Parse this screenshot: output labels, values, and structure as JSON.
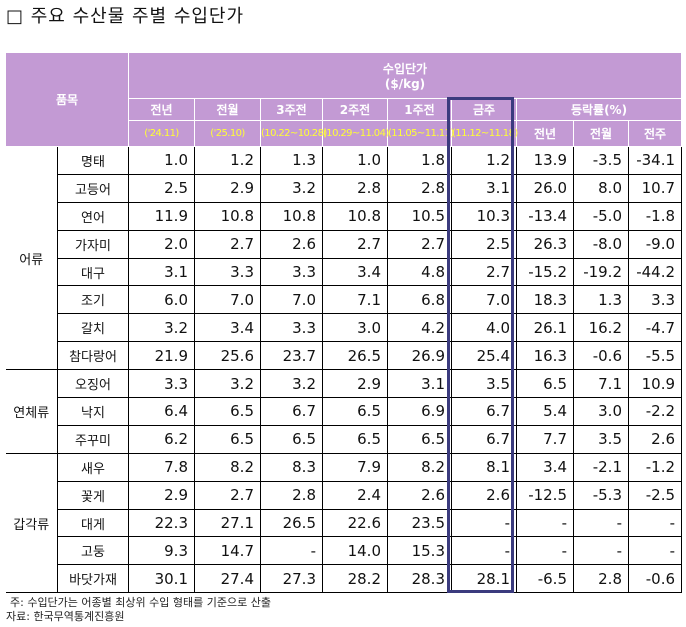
{
  "title": "□ 주요 수산물 주별 수입단가",
  "header": {
    "item": "품목",
    "price_title": "수입단가",
    "price_unit": "($/kg)",
    "periods": [
      {
        "label": "전년",
        "range": "('24.11)"
      },
      {
        "label": "전월",
        "range": "('25.10)"
      },
      {
        "label": "3주전",
        "range": "(10.22~10.28)"
      },
      {
        "label": "2주전",
        "range": "(10.29~11.04)"
      },
      {
        "label": "1주전",
        "range": "(11.05~11.11)"
      },
      {
        "label": "금주",
        "range": "(11.12~11.18)"
      }
    ],
    "change_title": "등락률(%)",
    "change_cols": [
      "전년",
      "전월",
      "전주"
    ]
  },
  "groups": [
    {
      "name": "어류",
      "rows": [
        {
          "item": "명태",
          "v": [
            "1.0",
            "1.2",
            "1.3",
            "1.0",
            "1.8",
            "1.2",
            "13.9",
            "-3.5",
            "-34.1"
          ]
        },
        {
          "item": "고등어",
          "v": [
            "2.5",
            "2.9",
            "3.2",
            "2.8",
            "2.8",
            "3.1",
            "26.0",
            "8.0",
            "10.7"
          ]
        },
        {
          "item": "연어",
          "v": [
            "11.9",
            "10.8",
            "10.8",
            "10.8",
            "10.5",
            "10.3",
            "-13.4",
            "-5.0",
            "-1.8"
          ]
        },
        {
          "item": "가자미",
          "v": [
            "2.0",
            "2.7",
            "2.6",
            "2.7",
            "2.7",
            "2.5",
            "26.3",
            "-8.0",
            "-9.0"
          ]
        },
        {
          "item": "대구",
          "v": [
            "3.1",
            "3.3",
            "3.3",
            "3.4",
            "4.8",
            "2.7",
            "-15.2",
            "-19.2",
            "-44.2"
          ]
        },
        {
          "item": "조기",
          "v": [
            "6.0",
            "7.0",
            "7.0",
            "7.1",
            "6.8",
            "7.0",
            "18.3",
            "1.3",
            "3.3"
          ]
        },
        {
          "item": "갈치",
          "v": [
            "3.2",
            "3.4",
            "3.3",
            "3.0",
            "4.2",
            "4.0",
            "26.1",
            "16.2",
            "-4.7"
          ]
        },
        {
          "item": "참다랑어",
          "v": [
            "21.9",
            "25.6",
            "23.7",
            "26.5",
            "26.9",
            "25.4",
            "16.3",
            "-0.6",
            "-5.5"
          ]
        }
      ]
    },
    {
      "name": "연체류",
      "rows": [
        {
          "item": "오징어",
          "v": [
            "3.3",
            "3.2",
            "3.2",
            "2.9",
            "3.1",
            "3.5",
            "6.5",
            "7.1",
            "10.9"
          ]
        },
        {
          "item": "낙지",
          "v": [
            "6.4",
            "6.5",
            "6.7",
            "6.5",
            "6.9",
            "6.7",
            "5.4",
            "3.0",
            "-2.2"
          ]
        },
        {
          "item": "주꾸미",
          "v": [
            "6.2",
            "6.5",
            "6.5",
            "6.5",
            "6.5",
            "6.7",
            "7.7",
            "3.5",
            "2.6"
          ]
        }
      ]
    },
    {
      "name": "갑각류",
      "rows": [
        {
          "item": "새우",
          "v": [
            "7.8",
            "8.2",
            "8.3",
            "7.9",
            "8.2",
            "8.1",
            "3.4",
            "-2.1",
            "-1.2"
          ]
        },
        {
          "item": "꽃게",
          "v": [
            "2.9",
            "2.7",
            "2.8",
            "2.4",
            "2.6",
            "2.6",
            "-12.5",
            "-5.3",
            "-2.5"
          ]
        },
        {
          "item": "대게",
          "v": [
            "22.3",
            "27.1",
            "26.5",
            "22.6",
            "23.5",
            "-",
            "-",
            "-",
            "-"
          ]
        },
        {
          "item": "고둥",
          "v": [
            "9.3",
            "14.7",
            "-",
            "14.0",
            "15.3",
            "-",
            "-",
            "-",
            "-"
          ]
        },
        {
          "item": "바닷가재",
          "v": [
            "30.1",
            "27.4",
            "27.3",
            "28.2",
            "28.3",
            "28.1",
            "-6.5",
            "2.8",
            "-0.6"
          ]
        }
      ]
    }
  ],
  "notes": [
    "주: 수입단가는 어종별 최상위 수입 형태를 기준으로 산출",
    "자료: 한국무역통계진흥원"
  ],
  "colors": {
    "header_bg": "#c39ad4",
    "period_range": "#ffff33",
    "highlight_frame": "#3b3b7e"
  }
}
